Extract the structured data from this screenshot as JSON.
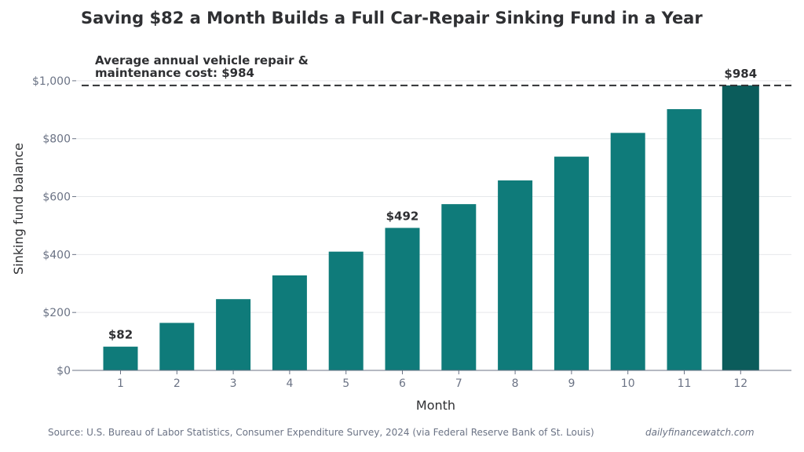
{
  "footer": {
    "source": "Source: U.S. Bureau of Labor Statistics, Consumer Expenditure Survey, 2024 (via Federal Reserve Bank of St. Louis)",
    "brand": "dailyfinancewatch.com"
  },
  "colors": {
    "bar": "#0f7b7a",
    "highlight_bar": "#0b5c5b",
    "reference_line": "#2f3033",
    "grid": "#e6e8eb",
    "axis": "#6b7385"
  },
  "chart_data": {
    "type": "bar",
    "title": "Saving $82 a Month Builds a Full Car-Repair Sinking Fund in a Year",
    "xlabel": "Month",
    "ylabel": "Sinking fund balance",
    "categories": [
      "1",
      "2",
      "3",
      "4",
      "5",
      "6",
      "7",
      "8",
      "9",
      "10",
      "11",
      "12"
    ],
    "values": [
      82,
      164,
      246,
      328,
      410,
      492,
      574,
      656,
      738,
      820,
      902,
      984
    ],
    "ylim": [
      0,
      1100
    ],
    "yticks": [
      0,
      200,
      400,
      600,
      800,
      1000
    ],
    "ytick_labels": [
      "$0",
      "$200",
      "$400",
      "$600",
      "$800",
      "$1,000"
    ],
    "grid": true,
    "highlight_index": 11,
    "data_labels": [
      {
        "index": 0,
        "text": "$82"
      },
      {
        "index": 5,
        "text": "$492"
      },
      {
        "index": 11,
        "text": "$984"
      }
    ],
    "reference_line": {
      "value": 984,
      "style": "dashed",
      "label_line1": "Average annual vehicle repair &",
      "label_line2": "maintenance cost: $984"
    }
  }
}
